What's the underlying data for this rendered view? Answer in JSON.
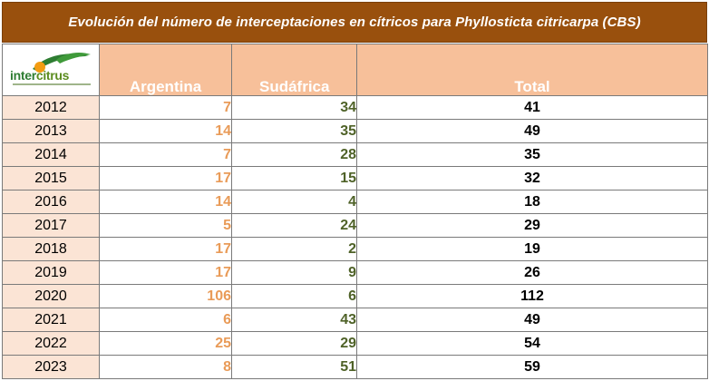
{
  "title": "Evolución del número de interceptaciones en cítricos para Phyllosticta citricarpa (CBS)",
  "logo": {
    "word_part1": "inter",
    "word_part2": "citrus"
  },
  "headers": {
    "argentina": "Argentina",
    "sudafrica": "Sudáfrica",
    "total": "Total"
  },
  "rows": [
    {
      "year": "2012",
      "argentina": "7",
      "sudafrica": "34",
      "total": "41"
    },
    {
      "year": "2013",
      "argentina": "14",
      "sudafrica": "35",
      "total": "49"
    },
    {
      "year": "2014",
      "argentina": "7",
      "sudafrica": "28",
      "total": "35"
    },
    {
      "year": "2015",
      "argentina": "17",
      "sudafrica": "15",
      "total": "32"
    },
    {
      "year": "2016",
      "argentina": "14",
      "sudafrica": "4",
      "total": "18"
    },
    {
      "year": "2017",
      "argentina": "5",
      "sudafrica": "24",
      "total": "29"
    },
    {
      "year": "2018",
      "argentina": "17",
      "sudafrica": "2",
      "total": "19"
    },
    {
      "year": "2019",
      "argentina": "17",
      "sudafrica": "9",
      "total": "26"
    },
    {
      "year": "2020",
      "argentina": "106",
      "sudafrica": "6",
      "total": "112"
    },
    {
      "year": "2021",
      "argentina": "6",
      "sudafrica": "43",
      "total": "49"
    },
    {
      "year": "2022",
      "argentina": "25",
      "sudafrica": "29",
      "total": "54"
    },
    {
      "year": "2023",
      "argentina": "8",
      "sudafrica": "51",
      "total": "59"
    }
  ],
  "colors": {
    "title_bg": "#99500d",
    "header_bg": "#f7c09a",
    "year_bg": "#fbe4d5",
    "argentina_text": "#e99b58",
    "sudafrica_text": "#4f6228",
    "total_text": "#000000"
  }
}
